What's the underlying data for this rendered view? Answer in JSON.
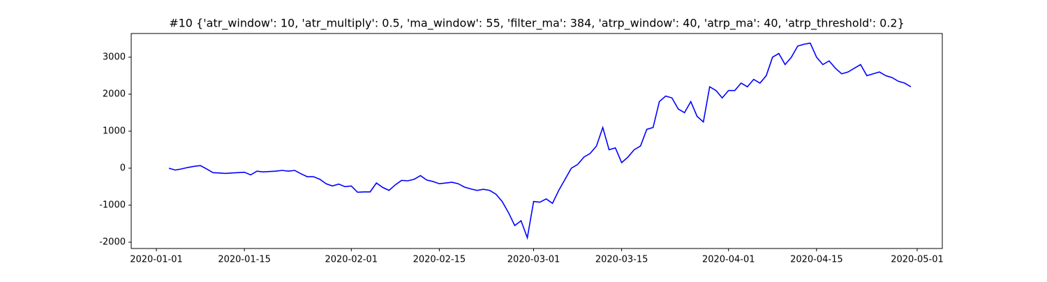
{
  "chart_data": {
    "type": "line",
    "title": "#10 {'atr_window': 10, 'atr_multiply': 0.5, 'ma_window': 55, 'filter_ma': 384, 'atrp_window': 40, 'atrp_ma': 40, 'atrp_threshold': 0.2}",
    "x": [
      "2020-01-03",
      "2020-01-04",
      "2020-01-05",
      "2020-01-06",
      "2020-01-07",
      "2020-01-08",
      "2020-01-09",
      "2020-01-10",
      "2020-01-11",
      "2020-01-12",
      "2020-01-13",
      "2020-01-14",
      "2020-01-15",
      "2020-01-16",
      "2020-01-17",
      "2020-01-18",
      "2020-01-19",
      "2020-01-20",
      "2020-01-21",
      "2020-01-22",
      "2020-01-23",
      "2020-01-24",
      "2020-01-25",
      "2020-01-26",
      "2020-01-27",
      "2020-01-28",
      "2020-01-29",
      "2020-01-30",
      "2020-01-31",
      "2020-02-01",
      "2020-02-02",
      "2020-02-03",
      "2020-02-04",
      "2020-02-05",
      "2020-02-06",
      "2020-02-07",
      "2020-02-08",
      "2020-02-09",
      "2020-02-10",
      "2020-02-11",
      "2020-02-12",
      "2020-02-13",
      "2020-02-14",
      "2020-02-15",
      "2020-02-16",
      "2020-02-17",
      "2020-02-18",
      "2020-02-19",
      "2020-02-20",
      "2020-02-21",
      "2020-02-22",
      "2020-02-23",
      "2020-02-24",
      "2020-02-25",
      "2020-02-26",
      "2020-02-27",
      "2020-02-28",
      "2020-02-29",
      "2020-03-01",
      "2020-03-02",
      "2020-03-03",
      "2020-03-04",
      "2020-03-05",
      "2020-03-06",
      "2020-03-07",
      "2020-03-08",
      "2020-03-09",
      "2020-03-10",
      "2020-03-11",
      "2020-03-12",
      "2020-03-13",
      "2020-03-14",
      "2020-03-15",
      "2020-03-16",
      "2020-03-17",
      "2020-03-18",
      "2020-03-19",
      "2020-03-20",
      "2020-03-21",
      "2020-03-22",
      "2020-03-23",
      "2020-03-24",
      "2020-03-25",
      "2020-03-26",
      "2020-03-27",
      "2020-03-28",
      "2020-03-29",
      "2020-03-30",
      "2020-03-31",
      "2020-04-01",
      "2020-04-02",
      "2020-04-03",
      "2020-04-04",
      "2020-04-05",
      "2020-04-06",
      "2020-04-07",
      "2020-04-08",
      "2020-04-09",
      "2020-04-10",
      "2020-04-11",
      "2020-04-12",
      "2020-04-13",
      "2020-04-14",
      "2020-04-15",
      "2020-04-16",
      "2020-04-17",
      "2020-04-18",
      "2020-04-19",
      "2020-04-20",
      "2020-04-21",
      "2020-04-22",
      "2020-04-23",
      "2020-04-24",
      "2020-04-25",
      "2020-04-26",
      "2020-04-27",
      "2020-04-28",
      "2020-04-29",
      "2020-04-30"
    ],
    "series": [
      {
        "color": "#0000ff",
        "values": [
          0,
          -50,
          -20,
          20,
          50,
          70,
          -20,
          -120,
          -130,
          -140,
          -130,
          -120,
          -110,
          -180,
          -80,
          -100,
          -90,
          -80,
          -60,
          -80,
          -60,
          -150,
          -230,
          -230,
          -300,
          -420,
          -480,
          -430,
          -500,
          -480,
          -650,
          -640,
          -640,
          -400,
          -520,
          -600,
          -450,
          -330,
          -340,
          -300,
          -200,
          -320,
          -360,
          -420,
          -400,
          -380,
          -420,
          -510,
          -560,
          -600,
          -570,
          -600,
          -700,
          -900,
          -1200,
          -1550,
          -1420,
          -1880,
          -900,
          -920,
          -830,
          -950,
          -600,
          -300,
          0,
          100,
          300,
          400,
          600,
          1100,
          500,
          550,
          150,
          300,
          500,
          600,
          1050,
          1100,
          1800,
          1950,
          1900,
          1600,
          1500,
          1800,
          1400,
          1250,
          2200,
          2100,
          1900,
          2100,
          2100,
          2300,
          2200,
          2400,
          2300,
          2500,
          3000,
          3100,
          2800,
          3000,
          3300,
          3350,
          3380,
          3000,
          2800,
          2900,
          2700,
          2550,
          2600,
          2700,
          2800,
          2500,
          2550,
          2600,
          2500,
          2450,
          2350,
          2300,
          2200
        ]
      }
    ],
    "xlim": [
      "2019-12-28",
      "2020-05-05"
    ],
    "xticks": [
      "2020-01-01",
      "2020-01-15",
      "2020-02-01",
      "2020-02-15",
      "2020-03-01",
      "2020-03-15",
      "2020-04-01",
      "2020-04-15",
      "2020-05-01"
    ],
    "ylim": [
      -2170,
      3640
    ],
    "yticks": [
      -2000,
      -1000,
      0,
      1000,
      2000,
      3000
    ]
  }
}
